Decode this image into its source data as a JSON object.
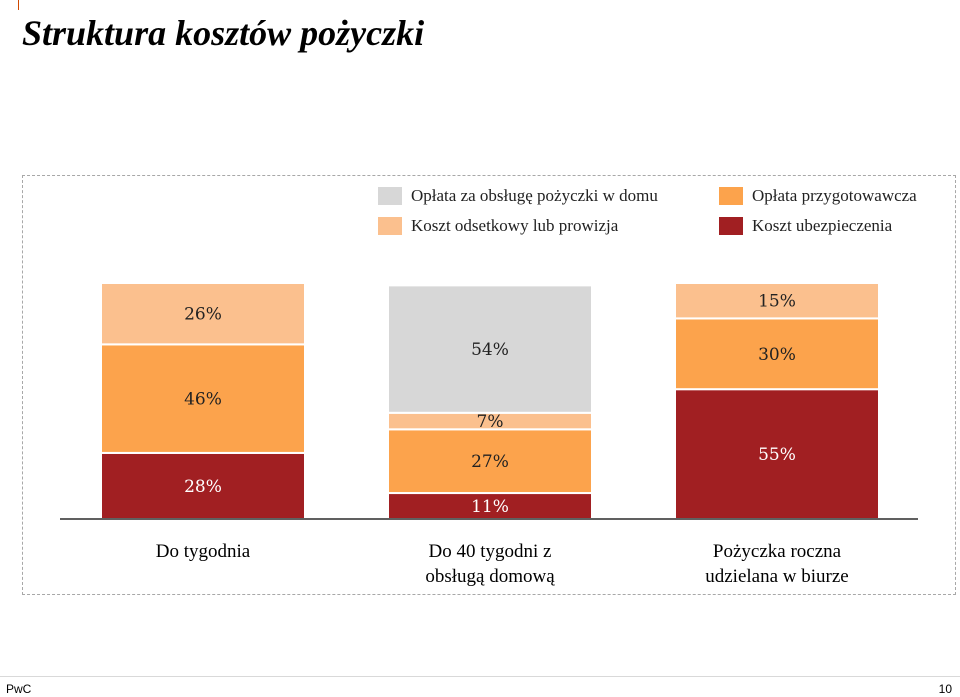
{
  "title": "Struktura kosztów pożyczki",
  "footer": {
    "brand": "PwC",
    "page": "10"
  },
  "colors": {
    "home_service": "#d7d7d7",
    "interest": "#fbc08e",
    "preparation": "#fca34c",
    "insurance": "#a11f22"
  },
  "legend": [
    {
      "label": "Opłata za obsługę pożyczki w domu",
      "color": "#d7d7d7"
    },
    {
      "label": "Opłata przygotowawcza",
      "color": "#fca34c"
    },
    {
      "label": "Koszt odsetkowy lub prowizja",
      "color": "#fbc08e"
    },
    {
      "label": "Koszt ubezpieczenia",
      "color": "#a11f22"
    }
  ],
  "chart_data": {
    "type": "bar",
    "stacked": true,
    "normalized": true,
    "title": "Struktura kosztów pożyczki",
    "categories": [
      "Do tygodnia",
      "Do 40 tygodni z obsługą domową",
      "Pożyczka roczna udzielana w biurze"
    ],
    "category_lines": [
      [
        "Do tygodnia"
      ],
      [
        "Do 40 tygodni z",
        "obsługą domową"
      ],
      [
        "Pożyczka roczna",
        "udzielana w biurze"
      ]
    ],
    "series": [
      {
        "name": "Koszt ubezpieczenia",
        "color": "#a11f22",
        "values": [
          28,
          11,
          55
        ]
      },
      {
        "name": "Opłata przygotowawcza",
        "color": "#fca34c",
        "values": [
          46,
          27,
          30
        ]
      },
      {
        "name": "Koszt odsetkowy lub prowizja",
        "color": "#fbc08e",
        "values": [
          26,
          7,
          15
        ]
      },
      {
        "name": "Opłata za obsługę pożyczki w domu",
        "color": "#d7d7d7",
        "values": [
          0,
          54,
          0
        ]
      }
    ],
    "data_labels": [
      [
        "28%",
        "46%",
        "26%",
        ""
      ],
      [
        "11%",
        "27%",
        "7%",
        "54%"
      ],
      [
        "55%",
        "30%",
        "15%",
        ""
      ]
    ],
    "ylim": [
      0,
      100
    ],
    "legend_position": "top-right",
    "grid": false
  }
}
